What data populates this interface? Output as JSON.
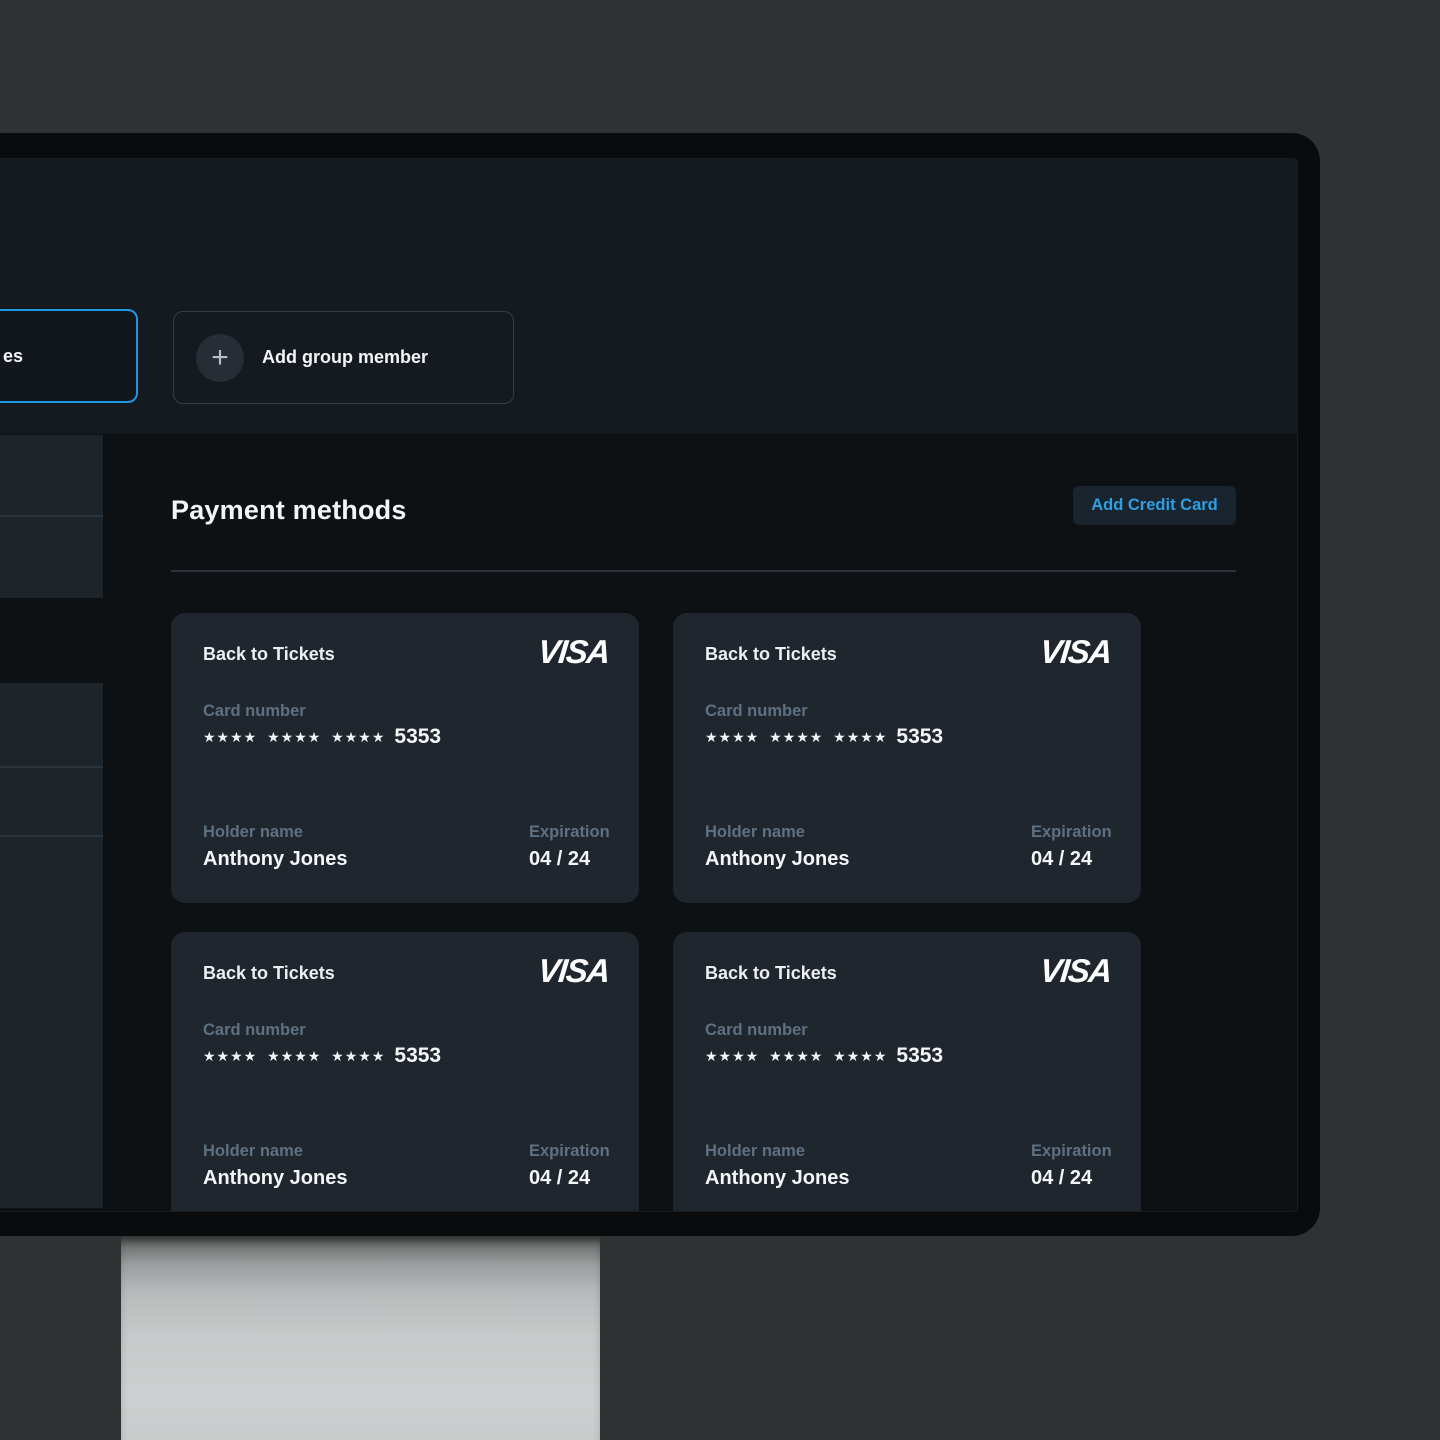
{
  "window": {
    "top_bar": {
      "partial_tab_label": "es",
      "add_group_member": {
        "label": "Add group member",
        "plus": "+"
      }
    },
    "payment_section": {
      "title": "Payment methods",
      "add_credit_card_button": "Add Credit Card"
    },
    "cards": [
      {
        "back_label": "Back to Tickets",
        "brand": "VISA",
        "card_number_label": "Card number",
        "masked_number": "★★★★ ★★★★ ★★★★",
        "last_digits": "5353",
        "holder_label": "Holder name",
        "holder_name": "Anthony Jones",
        "expiration_label": "Expiration",
        "expiration_value": "04 / 24"
      },
      {
        "back_label": "Back to Tickets",
        "brand": "VISA",
        "card_number_label": "Card number",
        "masked_number": "★★★★ ★★★★ ★★★★",
        "last_digits": "5353",
        "holder_label": "Holder name",
        "holder_name": "Anthony Jones",
        "expiration_label": "Expiration",
        "expiration_value": "04 / 24"
      },
      {
        "back_label": "Back to Tickets",
        "brand": "VISA",
        "card_number_label": "Card number",
        "masked_number": "★★★★ ★★★★ ★★★★",
        "last_digits": "5353",
        "holder_label": "Holder name",
        "holder_name": "Anthony Jones",
        "expiration_label": "Expiration",
        "expiration_value": "04 / 24"
      },
      {
        "back_label": "Back to Tickets",
        "brand": "VISA",
        "card_number_label": "Card number",
        "masked_number": "★★★★ ★★★★ ★★★★",
        "last_digits": "5353",
        "holder_label": "Holder name",
        "holder_name": "Anthony Jones",
        "expiration_label": "Expiration",
        "expiration_value": "04 / 24"
      }
    ],
    "colors": {
      "accent_blue_border": "#2196e3",
      "link_blue": "#2d9fe2",
      "card_background": "#20262d",
      "header_band_background": "#151a20",
      "screen_background": "#0e1114",
      "muted_label": "#5e7082"
    }
  }
}
